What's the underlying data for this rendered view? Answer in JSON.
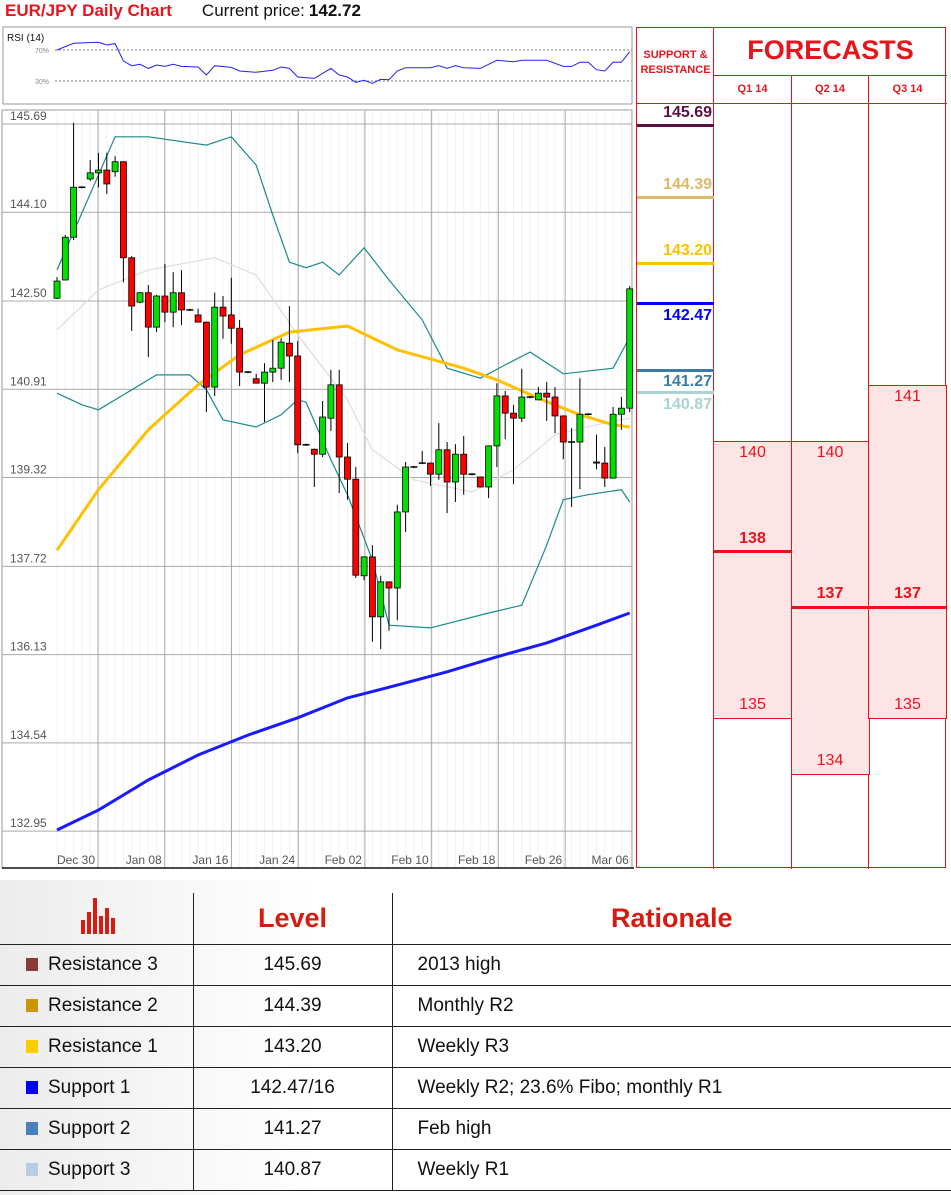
{
  "header": {
    "title": "EUR/JPY Daily Chart",
    "current_price_label": "Current price:",
    "current_price": "142.72"
  },
  "chart_data": [
    {
      "type": "candlestick",
      "y_ticks": [
        "145.69",
        "144.10",
        "142.50",
        "140.91",
        "139.32",
        "137.72",
        "136.13",
        "134.54",
        "132.95"
      ],
      "ylim": [
        132.28,
        145.94
      ],
      "x_labels": [
        "Dec 30",
        "Jan 08",
        "Jan 16",
        "Jan 24",
        "Feb 02",
        "Feb 10",
        "Feb 18",
        "Feb 26",
        "Mar 06"
      ],
      "grid": true,
      "colors": {
        "up": "#00e000",
        "down": "#ff0000",
        "bollinger": "#1a8a8a",
        "bollinger_mid": "#dddddd",
        "ma_yellow": "#ffc000",
        "ma_blue": "#1a1aff"
      },
      "candles_ohlc": [
        [
          142.55,
          142.93,
          142.54,
          142.86
        ],
        [
          142.88,
          143.69,
          142.87,
          143.65
        ],
        [
          143.65,
          145.71,
          143.6,
          144.55
        ],
        [
          144.55,
          144.57,
          144.53,
          144.55
        ],
        [
          144.7,
          145.04,
          144.66,
          144.81
        ],
        [
          144.81,
          145.17,
          144.55,
          144.86
        ],
        [
          144.86,
          145.17,
          144.43,
          144.61
        ],
        [
          144.83,
          145.11,
          144.74,
          145.01
        ],
        [
          145.01,
          145.02,
          142.84,
          143.28
        ],
        [
          143.28,
          143.31,
          141.96,
          142.41
        ],
        [
          142.48,
          142.66,
          142.46,
          142.65
        ],
        [
          142.65,
          142.79,
          141.49,
          142.03
        ],
        [
          142.03,
          142.61,
          141.94,
          142.59
        ],
        [
          142.59,
          143.17,
          142.12,
          142.3
        ],
        [
          142.3,
          143.02,
          142.03,
          142.65
        ],
        [
          142.65,
          143.06,
          142.07,
          142.34
        ],
        [
          142.34,
          142.36,
          142.32,
          142.34
        ],
        [
          142.25,
          142.36,
          142.12,
          142.12
        ],
        [
          142.12,
          142.13,
          140.5,
          140.95
        ],
        [
          140.95,
          142.65,
          140.79,
          142.39
        ],
        [
          142.39,
          142.59,
          141.82,
          142.23
        ],
        [
          142.25,
          142.92,
          141.73,
          142.01
        ],
        [
          142.01,
          142.16,
          140.97,
          141.22
        ],
        [
          141.22,
          141.24,
          141.2,
          141.22
        ],
        [
          141.1,
          141.19,
          141.02,
          141.02
        ],
        [
          141.02,
          141.38,
          140.32,
          141.22
        ],
        [
          141.22,
          141.8,
          141.04,
          141.29
        ],
        [
          141.29,
          141.83,
          141.08,
          141.76
        ],
        [
          141.74,
          142.41,
          141.04,
          141.51
        ],
        [
          141.51,
          141.78,
          139.76,
          139.91
        ],
        [
          139.91,
          139.93,
          139.89,
          139.91
        ],
        [
          139.83,
          139.84,
          139.15,
          139.74
        ],
        [
          139.74,
          140.7,
          139.69,
          140.41
        ],
        [
          140.39,
          141.26,
          140.16,
          140.99
        ],
        [
          140.99,
          141.26,
          139.04,
          139.69
        ],
        [
          139.69,
          139.94,
          138.92,
          139.29
        ],
        [
          139.29,
          139.51,
          137.51,
          137.56
        ],
        [
          137.55,
          137.9,
          137.47,
          137.89
        ],
        [
          137.89,
          138.1,
          136.36,
          136.81
        ],
        [
          136.81,
          137.55,
          136.23,
          137.44
        ],
        [
          137.44,
          137.45,
          136.56,
          137.33
        ],
        [
          137.33,
          138.83,
          136.75,
          138.7
        ],
        [
          138.7,
          139.6,
          138.34,
          139.51
        ],
        [
          139.51,
          139.53,
          139.49,
          139.51
        ],
        [
          139.58,
          139.8,
          139.57,
          139.58
        ],
        [
          139.58,
          139.59,
          139.17,
          139.38
        ],
        [
          139.38,
          140.3,
          139.28,
          139.82
        ],
        [
          139.82,
          139.96,
          138.68,
          139.24
        ],
        [
          139.24,
          139.92,
          138.88,
          139.74
        ],
        [
          139.74,
          140.07,
          139.01,
          139.38
        ],
        [
          139.38,
          139.4,
          139.36,
          139.38
        ],
        [
          139.33,
          139.34,
          139.14,
          139.15
        ],
        [
          139.15,
          139.9,
          138.95,
          139.89
        ],
        [
          139.89,
          141.02,
          139.51,
          140.79
        ],
        [
          140.79,
          140.88,
          140.01,
          140.48
        ],
        [
          140.48,
          140.63,
          139.2,
          140.39
        ],
        [
          140.39,
          141.28,
          140.32,
          140.77
        ],
        [
          140.77,
          140.79,
          140.75,
          140.77
        ],
        [
          140.72,
          140.95,
          140.71,
          140.84
        ],
        [
          140.84,
          141.04,
          140.34,
          140.77
        ],
        [
          140.77,
          140.95,
          140.12,
          140.43
        ],
        [
          140.43,
          140.44,
          139.65,
          139.96
        ],
        [
          139.96,
          140.21,
          138.79,
          139.96
        ],
        [
          139.96,
          141.11,
          139.11,
          140.46
        ],
        [
          140.46,
          140.48,
          140.44,
          140.46
        ],
        [
          139.6,
          140.09,
          139.47,
          139.58
        ],
        [
          139.58,
          139.87,
          139.15,
          139.31
        ],
        [
          139.31,
          140.59,
          139.3,
          140.46
        ],
        [
          140.46,
          140.77,
          140.18,
          140.57
        ],
        [
          140.57,
          142.77,
          140.5,
          142.72
        ]
      ],
      "lines": {
        "bollinger_upper": [
          [
            1,
            143.06
          ],
          [
            8,
            145.46
          ],
          [
            12,
            145.46
          ],
          [
            19,
            145.31
          ],
          [
            22,
            145.46
          ],
          [
            25,
            144.95
          ],
          [
            27,
            144.05
          ],
          [
            29,
            143.2
          ],
          [
            31,
            143.1
          ],
          [
            33,
            143.2
          ],
          [
            35,
            142.97
          ],
          [
            38,
            143.46
          ],
          [
            41,
            142.88
          ],
          [
            45,
            142.16
          ],
          [
            48,
            141.29
          ],
          [
            52,
            141.11
          ],
          [
            55,
            141.35
          ],
          [
            58,
            141.58
          ],
          [
            61,
            141.29
          ],
          [
            62,
            141.19
          ],
          [
            68,
            141.29
          ],
          [
            70,
            141.85
          ]
        ],
        "bollinger_middle": [
          [
            1,
            141.98
          ],
          [
            6,
            142.7
          ],
          [
            12,
            143.06
          ],
          [
            20,
            143.28
          ],
          [
            25,
            142.97
          ],
          [
            30,
            141.89
          ],
          [
            36,
            140.72
          ],
          [
            39,
            139.82
          ],
          [
            44,
            139.28
          ],
          [
            51,
            139.06
          ],
          [
            56,
            139.46
          ],
          [
            61,
            140.09
          ],
          [
            66,
            140.27
          ],
          [
            70,
            140.39
          ]
        ],
        "bollinger_lower": [
          [
            1,
            140.84
          ],
          [
            4,
            140.63
          ],
          [
            6,
            140.54
          ],
          [
            10,
            140.9
          ],
          [
            13,
            141.17
          ],
          [
            17,
            141.17
          ],
          [
            19,
            140.9
          ],
          [
            21,
            140.36
          ],
          [
            25,
            140.23
          ],
          [
            28,
            140.45
          ],
          [
            30,
            140.72
          ],
          [
            31,
            140.68
          ],
          [
            34,
            139.64
          ],
          [
            36,
            139.01
          ],
          [
            39,
            137.83
          ],
          [
            41,
            136.66
          ],
          [
            46,
            136.61
          ],
          [
            53,
            136.88
          ],
          [
            57,
            137.02
          ],
          [
            60,
            138.1
          ],
          [
            62,
            138.92
          ],
          [
            65,
            139.01
          ],
          [
            69,
            139.1
          ],
          [
            70,
            138.88
          ]
        ],
        "ma_yellow": [
          [
            1,
            138.01
          ],
          [
            6,
            139.1
          ],
          [
            12,
            140.18
          ],
          [
            18,
            140.99
          ],
          [
            23,
            141.53
          ],
          [
            29,
            141.94
          ],
          [
            36,
            142.05
          ],
          [
            42,
            141.62
          ],
          [
            50,
            141.29
          ],
          [
            54,
            141.08
          ],
          [
            59,
            140.75
          ],
          [
            64,
            140.45
          ],
          [
            68,
            140.27
          ],
          [
            70,
            140.23
          ]
        ],
        "ma_blue": [
          [
            1,
            132.97
          ],
          [
            6,
            133.33
          ],
          [
            12,
            133.87
          ],
          [
            18,
            134.32
          ],
          [
            24,
            134.68
          ],
          [
            30,
            134.99
          ],
          [
            36,
            135.35
          ],
          [
            42,
            135.58
          ],
          [
            48,
            135.82
          ],
          [
            54,
            136.09
          ],
          [
            60,
            136.34
          ],
          [
            66,
            136.66
          ],
          [
            70,
            136.88
          ]
        ]
      }
    },
    {
      "type": "line",
      "title": "RSI (14)",
      "levels": [
        {
          "value": 70,
          "label": "70%"
        },
        {
          "value": 30,
          "label": "30%"
        }
      ],
      "color": "#2222ee",
      "values": [
        [
          1,
          70.0
        ],
        [
          3,
          78.6
        ],
        [
          6,
          79.9
        ],
        [
          7,
          76.5
        ],
        [
          8,
          78.2
        ],
        [
          9,
          55.8
        ],
        [
          10,
          49.8
        ],
        [
          11,
          51.5
        ],
        [
          12,
          46.3
        ],
        [
          13,
          50.6
        ],
        [
          14,
          48.9
        ],
        [
          15,
          51.5
        ],
        [
          16,
          48.9
        ],
        [
          18,
          48.1
        ],
        [
          19,
          37.7
        ],
        [
          20,
          49.8
        ],
        [
          22,
          47.6
        ],
        [
          23,
          42.9
        ],
        [
          25,
          41.2
        ],
        [
          27,
          43.8
        ],
        [
          28,
          48.1
        ],
        [
          29,
          46.3
        ],
        [
          30,
          35.2
        ],
        [
          32,
          33.4
        ],
        [
          34,
          46.3
        ],
        [
          35,
          37.7
        ],
        [
          36,
          35.2
        ],
        [
          37,
          28.3
        ],
        [
          38,
          30.9
        ],
        [
          39,
          27.0
        ],
        [
          40,
          32.2
        ],
        [
          41,
          31.7
        ],
        [
          42,
          42.9
        ],
        [
          43,
          47.2
        ],
        [
          46,
          47.2
        ],
        [
          47,
          49.8
        ],
        [
          48,
          46.3
        ],
        [
          49,
          49.8
        ],
        [
          50,
          47.2
        ],
        [
          52,
          46.3
        ],
        [
          54,
          56.7
        ],
        [
          56,
          54.9
        ],
        [
          57,
          56.7
        ],
        [
          60,
          56.7
        ],
        [
          62,
          48.9
        ],
        [
          63,
          48.9
        ],
        [
          64,
          54.1
        ],
        [
          65,
          54.1
        ],
        [
          66,
          44.6
        ],
        [
          67,
          42.9
        ],
        [
          68,
          54.1
        ],
        [
          69,
          54.1
        ],
        [
          70,
          67.8
        ]
      ]
    }
  ],
  "panel": {
    "sr_header": "SUPPORT & RESISTANCE",
    "forecasts_header": "FORECASTS",
    "sr_levels": [
      {
        "value": "145.69",
        "price": 145.69,
        "color": "#5c1040",
        "label_pos": "above"
      },
      {
        "value": "144.39",
        "price": 144.39,
        "color": "#dcb86c",
        "label_pos": "above"
      },
      {
        "value": "143.20",
        "price": 143.2,
        "color": "#ffc000",
        "label_pos": "above"
      },
      {
        "value": "142.47",
        "price": 142.47,
        "color": "#0000ff",
        "label_pos": "below"
      },
      {
        "value": "141.27",
        "price": 141.27,
        "color": "#3a7ca5",
        "label_pos": "below"
      },
      {
        "value": "140.87",
        "price": 140.87,
        "color": "#a9d3d3",
        "label_pos": "below"
      }
    ],
    "forecasts": [
      {
        "quarter": "Q1 14",
        "high": "140",
        "mid": "138",
        "low": "135"
      },
      {
        "quarter": "Q2 14",
        "high": "140",
        "mid": "137",
        "low": "134"
      },
      {
        "quarter": "Q3 14",
        "high": "141",
        "mid": "137",
        "low": "135"
      }
    ],
    "accent": "#e8141c",
    "box_fill": "#fde4e5"
  },
  "levels_table": {
    "icon": "bar-chart-icon",
    "headers": [
      "Level",
      "Rationale"
    ],
    "rows": [
      {
        "name": "Resistance 3",
        "level": "145.69",
        "rationale": "2013 high",
        "color": "#8b3a3a"
      },
      {
        "name": "Resistance 2",
        "level": "144.39",
        "rationale": "Monthly R2",
        "color": "#c8980a"
      },
      {
        "name": "Resistance 1",
        "level": "143.20",
        "rationale": "Weekly R3",
        "color": "#ffcc00"
      },
      {
        "name": "Support 1",
        "level": "142.47/16",
        "rationale": "Weekly R2; 23.6% Fibo; monthly R1",
        "color": "#0000ff"
      },
      {
        "name": "Support 2",
        "level": "141.27",
        "rationale": "Feb high",
        "color": "#4a7fc0"
      },
      {
        "name": "Support 3",
        "level": "140.87",
        "rationale": "Weekly R1",
        "color": "#b8cce4"
      }
    ]
  }
}
